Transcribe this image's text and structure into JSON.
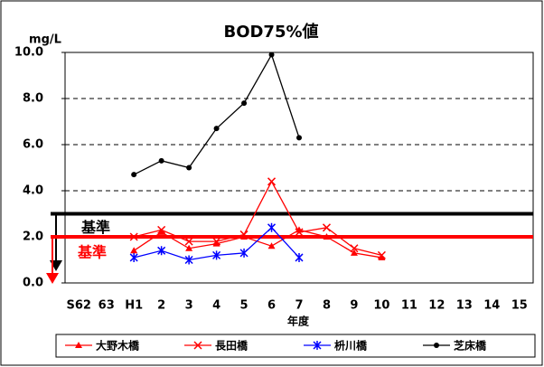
{
  "chart_data": {
    "type": "line",
    "title": "BOD75%値",
    "y_label": "mg/L",
    "x_label": "年度",
    "categories": [
      "S62",
      "63",
      "H1",
      "2",
      "3",
      "4",
      "5",
      "6",
      "7",
      "8",
      "9",
      "10",
      "11",
      "12",
      "13",
      "14",
      "15"
    ],
    "series": [
      {
        "name": "大野木橋",
        "color": "#ff0000",
        "marker": "triangle",
        "values": [
          null,
          null,
          1.4,
          2.2,
          1.5,
          1.7,
          2.0,
          1.6,
          2.3,
          2.0,
          1.3,
          1.1,
          null,
          null,
          null,
          null,
          null
        ]
      },
      {
        "name": "長田橋",
        "color": "#ff0000",
        "marker": "x",
        "values": [
          null,
          null,
          2.0,
          2.3,
          1.8,
          1.8,
          2.1,
          4.4,
          2.2,
          2.4,
          1.5,
          1.2,
          null,
          null,
          null,
          null,
          null
        ]
      },
      {
        "name": "枡川橋",
        "color": "#0000ff",
        "marker": "asterisk",
        "values": [
          null,
          null,
          1.1,
          1.4,
          1.0,
          1.2,
          1.3,
          2.4,
          1.1,
          null,
          null,
          null,
          null,
          null,
          null,
          null,
          null
        ]
      },
      {
        "name": "芝床橋",
        "color": "#000000",
        "marker": "circle",
        "values": [
          null,
          null,
          4.7,
          5.3,
          5.0,
          6.7,
          7.8,
          9.9,
          6.3,
          null,
          null,
          null,
          null,
          null,
          null,
          null,
          null
        ]
      }
    ],
    "ylim": [
      0,
      10
    ],
    "yticks": [
      {
        "value": 0,
        "label": "0.0"
      },
      {
        "value": 2,
        "label": "2.0"
      },
      {
        "value": 4,
        "label": "4.0"
      },
      {
        "value": 6,
        "label": "6.0"
      },
      {
        "value": 8,
        "label": "8.0"
      },
      {
        "value": 10,
        "label": "10.0"
      }
    ],
    "grid": "dashed",
    "reference_lines": [
      {
        "value": 3,
        "label": "基準",
        "color": "#000000"
      },
      {
        "value": 2,
        "label": "基準",
        "color": "#ff0000"
      }
    ],
    "legend": "bottom"
  }
}
